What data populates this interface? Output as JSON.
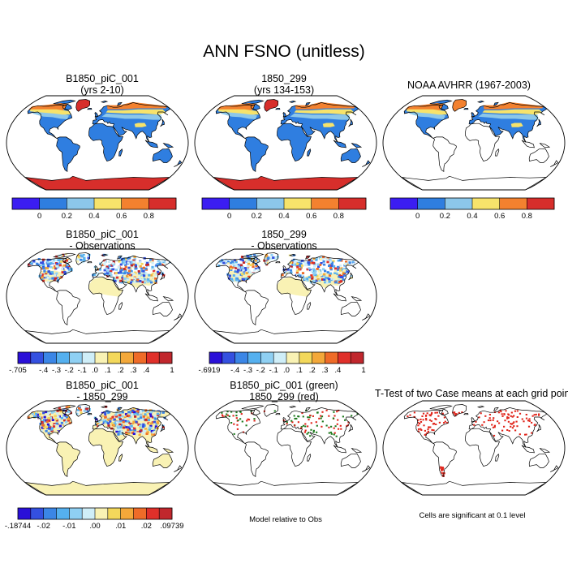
{
  "title": "ANN FSNO (unitless)",
  "colors": {
    "land_base": "#ffffff",
    "outline": "#000000",
    "scale6": [
      "#3b1df2",
      "#2f7ee0",
      "#8cc7ea",
      "#f7e36b",
      "#f3812f",
      "#d72e2b"
    ],
    "scale12": [
      "#2a10d8",
      "#3450e0",
      "#3b86e6",
      "#55b0ef",
      "#8fd0f3",
      "#cfeef8",
      "#f9f2b4",
      "#f3d85b",
      "#f3a83a",
      "#ef6b28",
      "#e0302a",
      "#c1272d"
    ],
    "diff_green": "#1f7a1f",
    "diff_red": "#e0241a",
    "sig_red": "#e0241a"
  },
  "panels": [
    {
      "id": "case1",
      "title_lines": [
        "B1850_piC_001",
        "(yrs 2-10)"
      ],
      "kind": "field",
      "variant": "model"
    },
    {
      "id": "case2",
      "title_lines": [
        "1850_299",
        "(yrs 134-153)"
      ],
      "kind": "field",
      "variant": "model"
    },
    {
      "id": "obs",
      "title_lines": [
        "NOAA AVHRR (1967-2003)"
      ],
      "kind": "field",
      "variant": "obs"
    },
    {
      "id": "case1-obs",
      "title_lines": [
        "B1850_piC_001",
        "- Observations"
      ],
      "kind": "diff",
      "variant": "diff"
    },
    {
      "id": "case2-obs",
      "title_lines": [
        "1850_299",
        "- Observations"
      ],
      "kind": "diff",
      "variant": "diff"
    },
    {
      "id": "case1-case2",
      "title_lines": [
        "B1850_piC_001",
        "- 1850_299"
      ],
      "kind": "diff",
      "variant": "diff2"
    },
    {
      "id": "relative",
      "title_lines": [
        "B1850_piC_001 (green)",
        "1850_299 (red)"
      ],
      "kind": "relative"
    },
    {
      "id": "ttest",
      "title_lines": [
        "T-Test of two Case means at each grid point"
      ],
      "kind": "ttest"
    }
  ],
  "colorbars": [
    {
      "id": "cb1",
      "palette": "scale6",
      "labels": [
        "0",
        "0.2",
        "0.4",
        "0.6",
        "0.8"
      ]
    },
    {
      "id": "cb2",
      "palette": "scale6",
      "labels": [
        "0",
        "0.2",
        "0.4",
        "0.6",
        "0.8"
      ]
    },
    {
      "id": "cb3",
      "palette": "scale6",
      "labels": [
        "0",
        "0.2",
        "0.4",
        "0.6",
        "0.8"
      ]
    },
    {
      "id": "cb4",
      "palette": "scale12",
      "labels": [
        "-.705",
        "-.4",
        "-.3",
        "-.2",
        "-.1",
        ".0",
        ".1",
        ".2",
        ".3",
        ".4",
        "1"
      ]
    },
    {
      "id": "cb5",
      "palette": "scale12",
      "labels": [
        "-.6919",
        "-.4",
        "-.3",
        "-.2",
        "-.1",
        ".0",
        ".1",
        ".2",
        ".3",
        ".4",
        "1"
      ]
    },
    {
      "id": "cb6",
      "palette": "scale12",
      "labels": [
        "-.18744",
        "-.02",
        "-.01",
        ".00",
        ".01",
        ".02",
        ".09739"
      ],
      "label_slots": [
        0,
        2,
        4,
        6,
        8,
        10,
        12
      ]
    }
  ],
  "notes": {
    "relative": "Model relative to Obs",
    "ttest": "Cells are significant at 0.1 level"
  }
}
